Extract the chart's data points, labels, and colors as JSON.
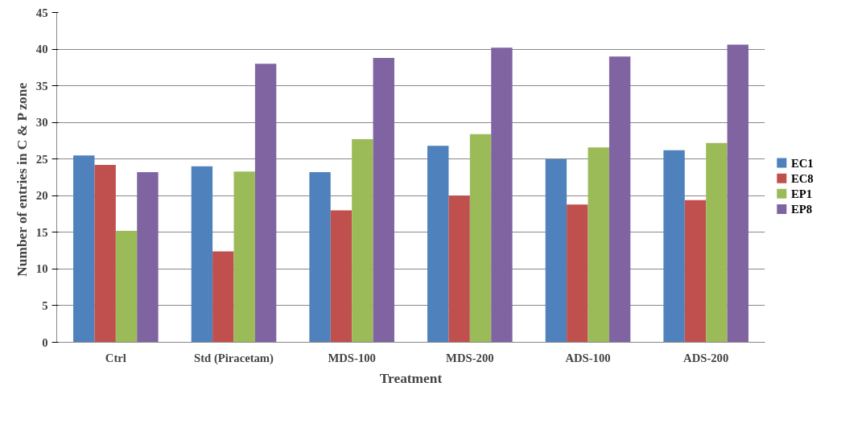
{
  "chart_data": {
    "type": "bar",
    "xlabel": "Treatment",
    "ylabel": "Number of entries in  C & P zone",
    "categories": [
      "Ctrl",
      "Std (Piracetam)",
      "MDS-100",
      "MDS-200",
      "ADS-100",
      "ADS-200"
    ],
    "series": [
      {
        "name": "EC1",
        "color": "#4f81bd",
        "values": [
          25.5,
          24.0,
          23.2,
          26.8,
          25.0,
          26.2
        ]
      },
      {
        "name": "EC8",
        "color": "#c0504d",
        "values": [
          24.2,
          12.4,
          18.0,
          20.0,
          18.8,
          19.4
        ]
      },
      {
        "name": "EP1",
        "color": "#9bbb59",
        "values": [
          15.2,
          23.3,
          27.7,
          28.4,
          26.6,
          27.2
        ]
      },
      {
        "name": "EP8",
        "color": "#8064a2",
        "values": [
          23.2,
          38.0,
          38.8,
          40.2,
          39.0,
          40.6
        ]
      }
    ],
    "ylim": [
      0,
      45
    ],
    "yticks": [
      0,
      5,
      10,
      15,
      20,
      25,
      30,
      35,
      40,
      45
    ],
    "grid": "y",
    "legend": "right"
  }
}
